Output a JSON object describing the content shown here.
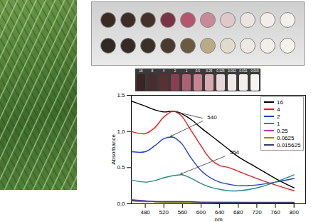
{
  "chart_data": {
    "type": "line",
    "xlabel": "nm",
    "ylabel": "Absorbance",
    "x": [
      450,
      480,
      500,
      520,
      540,
      554,
      560,
      580,
      600,
      620,
      640,
      660,
      680,
      720,
      760,
      800
    ],
    "series": [
      {
        "name": "16",
        "color": "#000000",
        "values": [
          1.42,
          1.35,
          1.3,
          1.27,
          1.28,
          1.26,
          1.24,
          1.16,
          1.05,
          0.95,
          0.85,
          0.75,
          0.65,
          0.5,
          0.35,
          0.22
        ]
      },
      {
        "name": "4",
        "color": "#e0211d",
        "values": [
          1.0,
          0.97,
          1.05,
          1.2,
          1.28,
          1.24,
          1.2,
          1.0,
          0.8,
          0.62,
          0.53,
          0.5,
          0.45,
          0.35,
          0.26,
          0.18
        ]
      },
      {
        "name": "2",
        "color": "#1f3fd6",
        "values": [
          0.72,
          0.72,
          0.8,
          0.9,
          0.92,
          0.86,
          0.82,
          0.62,
          0.46,
          0.36,
          0.3,
          0.27,
          0.25,
          0.26,
          0.3,
          0.35
        ]
      },
      {
        "name": "1",
        "color": "#2a8a84",
        "values": [
          0.33,
          0.3,
          0.32,
          0.36,
          0.39,
          0.4,
          0.4,
          0.35,
          0.28,
          0.23,
          0.2,
          0.18,
          0.18,
          0.22,
          0.3,
          0.4
        ]
      },
      {
        "name": "0.25",
        "color": "#c935c9",
        "values": [
          0.06,
          0.04,
          0.03,
          0.03,
          0.03,
          0.03,
          0.03,
          0.02,
          0.02,
          0.02,
          0.02,
          0.02,
          0.02,
          0.01,
          0.01,
          0.01
        ]
      },
      {
        "name": "0.0625",
        "color": "#8f8f14",
        "values": [
          0.04,
          0.03,
          0.03,
          0.02,
          0.02,
          0.02,
          0.02,
          0.02,
          0.02,
          0.02,
          0.01,
          0.01,
          0.01,
          0.01,
          0.01,
          0.01
        ]
      },
      {
        "name": "0.015625",
        "color": "#3a3a7a",
        "values": [
          0.05,
          0.04,
          0.03,
          0.03,
          0.03,
          0.03,
          0.03,
          0.03,
          0.02,
          0.02,
          0.02,
          0.02,
          0.02,
          0.02,
          0.02,
          0.02
        ]
      }
    ],
    "xlim": [
      450,
      825
    ],
    "xticks": [
      480,
      520,
      560,
      600,
      640,
      680,
      720,
      760,
      800
    ],
    "ylim": [
      0,
      1.5
    ],
    "yticks": [
      {
        "value": 0,
        "label": "0.0"
      },
      0.5,
      {
        "value": 1,
        "label": "1.0"
      },
      1.5
    ],
    "legend": "top-right",
    "annotations": [
      {
        "text": "540",
        "x": 612,
        "y": 1.17,
        "arrows_to": [
          [
            546,
            1.27
          ],
          [
            534,
            0.93
          ]
        ]
      },
      {
        "text": "554",
        "x": 660,
        "y": 0.68,
        "arrows_to": [
          [
            556,
            0.41
          ]
        ]
      }
    ]
  },
  "vials": {
    "labels": [
      "16",
      "8",
      "4",
      "2",
      "1",
      "0.5",
      "0.25",
      "0.125",
      "0.062",
      "0.031",
      "0.015"
    ]
  }
}
